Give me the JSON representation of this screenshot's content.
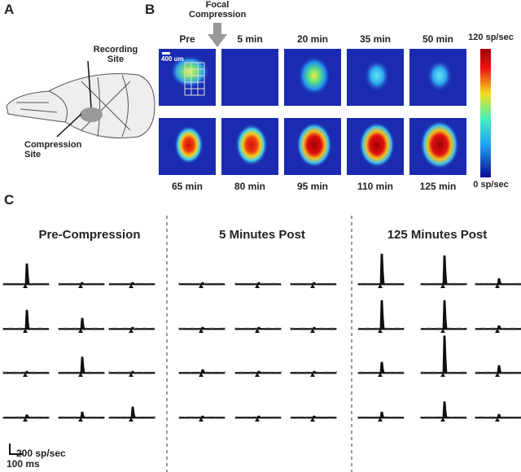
{
  "panels": {
    "a": {
      "label": "A",
      "recording_site": "Recording Site",
      "compression_site": "Compression Site"
    },
    "b": {
      "label": "B",
      "arrow_label": "Focal Compression",
      "scale_bar": "400 um",
      "times": [
        "Pre",
        "5 min",
        "20 min",
        "35 min",
        "50 min",
        "65 min",
        "80 min",
        "95 min",
        "110 min",
        "125 min"
      ],
      "colorbar_max": "120 sp/sec",
      "colorbar_min": "0 sp/sec"
    },
    "c": {
      "label": "C",
      "scale_y": "200 sp/sec",
      "scale_x": "100 ms",
      "groups": [
        {
          "title": "Pre-Compression",
          "peaks": [
            [
              370,
              40,
              40
            ],
            [
              340,
              200,
              40
            ],
            [
              40,
              290,
              40
            ],
            [
              60,
              110,
              200
            ]
          ]
        },
        {
          "title": "5 Minutes Post",
          "peaks": [
            [
              40,
              40,
              40
            ],
            [
              40,
              40,
              40
            ],
            [
              70,
              40,
              40
            ],
            [
              40,
              40,
              40
            ]
          ]
        },
        {
          "title": "125 Minutes Post",
          "peaks": [
            [
              540,
              510,
              110
            ],
            [
              510,
              510,
              70
            ],
            [
              200,
              660,
              140
            ],
            [
              110,
              290,
              70
            ]
          ]
        }
      ]
    }
  }
}
